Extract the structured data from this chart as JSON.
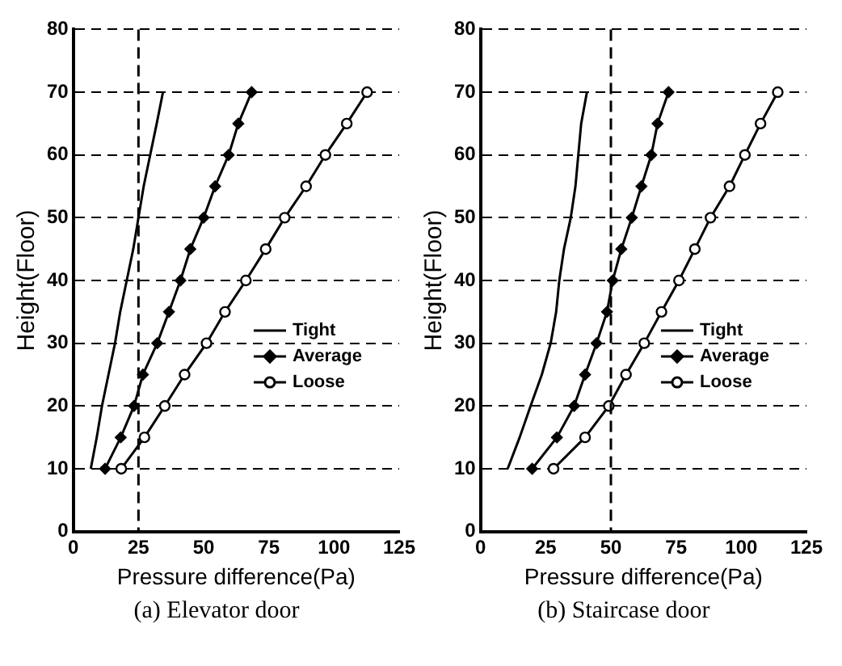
{
  "chart_data": [
    {
      "type": "line",
      "xlabel": "Pressure difference(Pa)",
      "ylabel": "Height(Floor)",
      "xlim": [
        0,
        125
      ],
      "xticks": [
        0,
        25,
        50,
        75,
        100,
        125
      ],
      "ylim": [
        0,
        80
      ],
      "yticks": [
        0,
        10,
        20,
        30,
        40,
        50,
        60,
        70,
        80
      ],
      "grid": "y",
      "legend": "bottom right",
      "annotations": [
        "(a) Elevator door"
      ],
      "ref_lines": [
        {
          "axis": "x",
          "value": 25,
          "color": "#000000",
          "line_style": "dashed"
        }
      ],
      "series": [
        {
          "name": "Tight",
          "color": "#000000",
          "marker": "none",
          "x": [
            6.7,
            9,
            11,
            13.5,
            16,
            18,
            20.5,
            23,
            25,
            27,
            29.5,
            32,
            34.4
          ],
          "values": [
            10,
            15,
            20,
            25,
            30,
            35,
            40,
            45,
            50,
            55,
            60,
            65,
            70
          ]
        },
        {
          "name": "Average",
          "color": "#000000",
          "marker": "diamond",
          "x": [
            12.2,
            18.2,
            23.3,
            26.7,
            32.2,
            36.7,
            41.1,
            44.9,
            50,
            54.4,
            59.6,
            63.3,
            68.4
          ],
          "values": [
            10,
            15,
            20,
            25,
            30,
            35,
            40,
            45,
            50,
            55,
            60,
            65,
            70
          ]
        },
        {
          "name": "Loose",
          "color": "#000000",
          "marker": "circle",
          "x": [
            18.4,
            27.3,
            35.1,
            42.7,
            51.1,
            58.2,
            66.2,
            73.8,
            81.1,
            89.3,
            96.7,
            104.9,
            112.7
          ],
          "values": [
            10,
            15,
            20,
            25,
            30,
            35,
            40,
            45,
            50,
            55,
            60,
            65,
            70
          ]
        }
      ]
    },
    {
      "type": "line",
      "xlabel": "Pressure difference(Pa)",
      "ylabel": "Height(Floor)",
      "xlim": [
        0,
        125
      ],
      "xticks": [
        0,
        25,
        50,
        75,
        100,
        125
      ],
      "ylim": [
        0,
        80
      ],
      "yticks": [
        0,
        10,
        20,
        30,
        40,
        50,
        60,
        70,
        80
      ],
      "grid": "y",
      "legend": "bottom right",
      "annotations": [
        "(b) Staircase door"
      ],
      "ref_lines": [
        {
          "axis": "x",
          "value": 50,
          "color": "#000000",
          "line_style": "dashed"
        }
      ],
      "series": [
        {
          "name": "Tight",
          "color": "#000000",
          "marker": "none",
          "x": [
            10.4,
            15,
            19.2,
            23.5,
            26.9,
            29,
            30.2,
            32,
            34.6,
            36.4,
            37.5,
            38.6,
            40.8
          ],
          "values": [
            10,
            15,
            20,
            25,
            30,
            35,
            40,
            45,
            50,
            55,
            60,
            65,
            70
          ]
        },
        {
          "name": "Average",
          "color": "#000000",
          "marker": "diamond",
          "x": [
            19.8,
            29.3,
            35.9,
            40.1,
            44.5,
            48.5,
            50.7,
            54,
            58,
            61.7,
            65.5,
            67.9,
            72.1
          ],
          "values": [
            10,
            15,
            20,
            25,
            30,
            35,
            40,
            45,
            50,
            55,
            60,
            65,
            70
          ]
        },
        {
          "name": "Loose",
          "color": "#000000",
          "marker": "circle",
          "x": [
            28,
            40.1,
            49.2,
            55.8,
            62.8,
            69.4,
            76.1,
            82.2,
            88.2,
            95.5,
            101.4,
            107.4,
            114
          ],
          "values": [
            10,
            15,
            20,
            25,
            30,
            35,
            40,
            45,
            50,
            55,
            60,
            65,
            70
          ]
        }
      ]
    }
  ]
}
